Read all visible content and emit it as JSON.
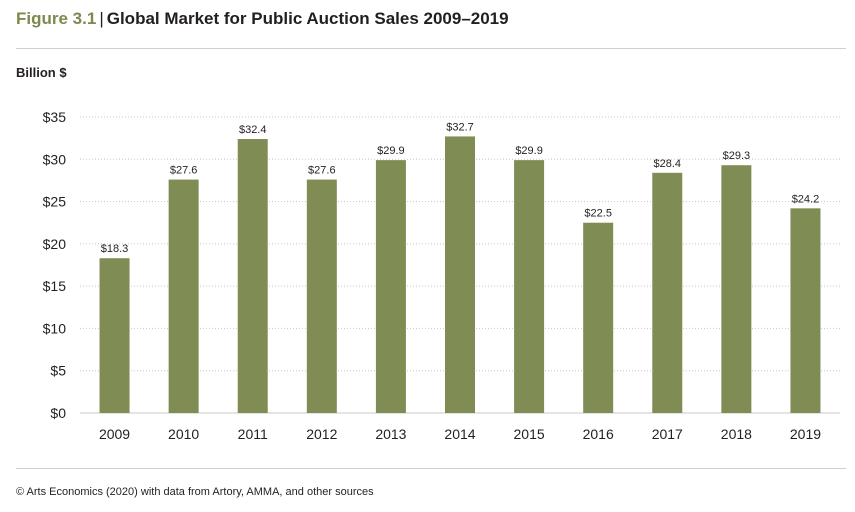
{
  "header": {
    "figure_label": "Figure 3.1",
    "separator": "|",
    "title": "Global Market for Public Auction Sales 2009–2019"
  },
  "chart_data": {
    "type": "bar",
    "title": "Global Market for Public Auction Sales 2009–2019",
    "ylabel": "Billion $",
    "xlabel": "",
    "categories": [
      "2009",
      "2010",
      "2011",
      "2012",
      "2013",
      "2014",
      "2015",
      "2016",
      "2017",
      "2018",
      "2019"
    ],
    "values": [
      18.3,
      27.6,
      32.4,
      27.6,
      29.9,
      32.7,
      29.9,
      22.5,
      28.4,
      29.3,
      24.2
    ],
    "value_labels": [
      "$18.3",
      "$27.6",
      "$32.4",
      "$27.6",
      "$29.9",
      "$32.7",
      "$29.9",
      "$22.5",
      "$28.4",
      "$29.3",
      "$24.2"
    ],
    "ylim": [
      0,
      35
    ],
    "yticks": [
      0,
      5,
      10,
      15,
      20,
      25,
      30,
      35
    ],
    "ytick_labels": [
      "$0",
      "$5",
      "$10",
      "$15",
      "$20",
      "$25",
      "$30",
      "$35"
    ],
    "grid": true,
    "bar_color": "#7f8c53",
    "grid_color": "#c8c8c8"
  },
  "colors": {
    "figure_label": "#7c8a4f",
    "text": "#231f20"
  },
  "footer": {
    "source": "© Arts Economics (2020) with data from Artory, AMMA, and other sources"
  }
}
